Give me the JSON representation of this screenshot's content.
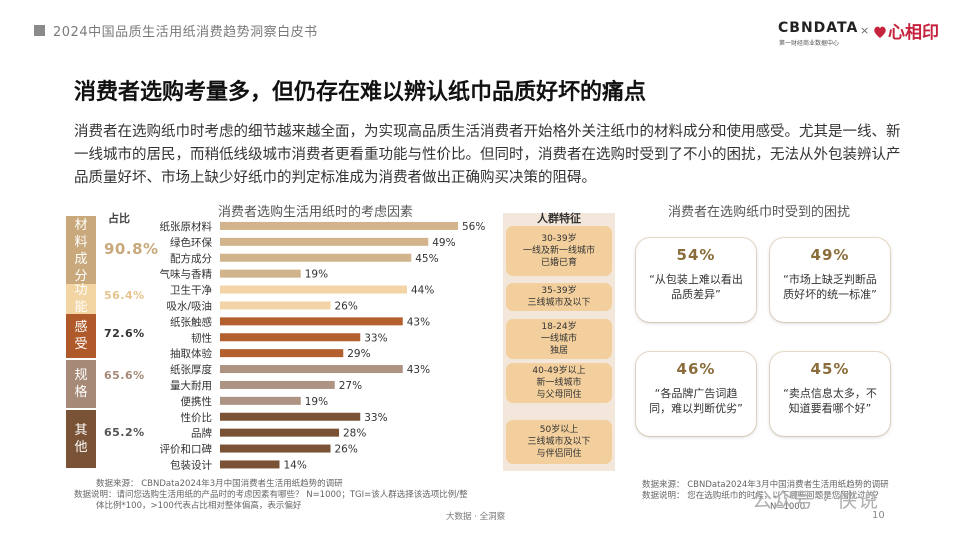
{
  "header": {
    "report_title": "2024中国品质生活用纸消费趋势洞察白皮书",
    "logo_cbn": "CBNDATA",
    "logo_cbn_sub": "第一财经商业数据中心",
    "logo_times": "×",
    "logo_partner": "心相印",
    "logo_partner_icon": "heart-brand-icon"
  },
  "headline": "消费者选购考量多，但仍存在难以辨认纸巾品质好坏的痛点",
  "intro": "消费者在选购纸巾时考虑的细节越来越全面，为实现高品质生活消费者开始格外关注纸巾的材料成分和使用感受。尤其是一线、新一线城市的居民，而稍低线级城市消费者更看重功能与性价比。但同时，消费者在选购时受到了不小的困扰，无法从外包装辨认产品质量好坏、市场上缺少好纸巾的判定标准成为消费者做出正确购买决策的阻碍。",
  "share_header": "占比",
  "categories": [
    {
      "name": "材料成分",
      "share": "90.8%",
      "box_color": "#c9a97c",
      "share_color": "#c9a97c"
    },
    {
      "name": "功能",
      "share": "56.4%",
      "box_color": "#f3d4a3",
      "share_color": "#e6c38e"
    },
    {
      "name": "感受",
      "share": "72.6%",
      "box_color": "#b05a2c",
      "share_color": "#333333"
    },
    {
      "name": "规格",
      "share": "65.6%",
      "box_color": "#a68a77",
      "share_color": "#a68a77"
    },
    {
      "name": "其他",
      "share": "65.2%",
      "box_color": "#7a5337",
      "share_color": "#555555"
    }
  ],
  "chart_data": {
    "type": "bar",
    "title": "消费者选购生活用纸时的考虑因素",
    "orientation": "horizontal",
    "categories": [
      "纸张原材料",
      "绿色环保",
      "配方成分",
      "气味与香精",
      "卫生干净",
      "吸水/吸油",
      "纸张触感",
      "韧性",
      "抽取体验",
      "纸张厚度",
      "量大耐用",
      "便携性",
      "性价比",
      "品牌",
      "评价和口碑",
      "包装设计"
    ],
    "values": [
      56,
      49,
      45,
      19,
      44,
      26,
      43,
      33,
      29,
      43,
      27,
      19,
      33,
      28,
      26,
      14
    ],
    "groups": [
      0,
      0,
      0,
      0,
      1,
      1,
      2,
      2,
      2,
      3,
      3,
      3,
      4,
      4,
      4,
      4
    ],
    "group_colors": [
      "#d2b48c",
      "#f2d4a6",
      "#b35f2e",
      "#ad9382",
      "#7a5337"
    ],
    "unit": "%",
    "xlim": [
      0,
      60
    ]
  },
  "crowd": {
    "title": "人群特征",
    "items": [
      [
        "30-39岁",
        "一线及新一线城市",
        "已婚已育"
      ],
      [
        "35-39岁",
        "三线城市及以下"
      ],
      [
        "18-24岁",
        "一线城市",
        "独居"
      ],
      [
        "40-49岁以上",
        "新一线城市",
        "与父母同住"
      ],
      [
        "50岁以上",
        "三线城市及以下",
        "与伴侣同住"
      ]
    ]
  },
  "panel": {
    "title": "消费者在选购纸巾时受到的困扰",
    "cards": [
      {
        "pct": "54%",
        "text": "“从包装上难以看出品质差异”"
      },
      {
        "pct": "49%",
        "text": "“市场上缺乏判断品质好坏的统一标准”"
      },
      {
        "pct": "46%",
        "text": "“各品牌广告词趋同，难以判断优劣”"
      },
      {
        "pct": "45%",
        "text": "“卖点信息太多，不知道要看哪个好”"
      }
    ]
  },
  "notes": {
    "left": [
      "数据来源：  CBNData2024年3月中国消费者生活用纸趋势的调研",
      "数据说明：请问您选购生活用纸的产品时的考虑因素有哪些？  N=1000；TGI=该人群选择该选项比例/整",
      "体比例*100，>100代表占比相对整体偏高，表示偏好"
    ],
    "right": [
      "数据来源：  CBNData2024年3月中国消费者生活用纸趋势的调研",
      "数据说明：  您在选购纸巾的时候，以下哪些问题是您困扰过的？",
      "N=1000"
    ],
    "footer_mid": "大数据 · 全洞察",
    "page_number": "10",
    "watermark": "公众号 · 侠说"
  }
}
